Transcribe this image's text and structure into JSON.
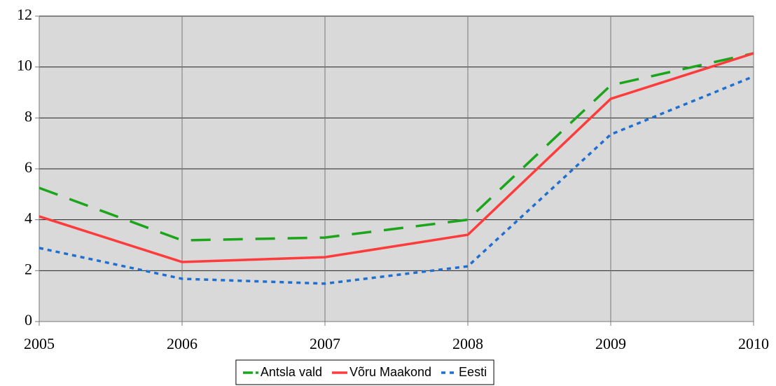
{
  "chart_data": {
    "type": "line",
    "x": [
      2005,
      2006,
      2007,
      2008,
      2009,
      2010
    ],
    "xlim": [
      2005,
      2010
    ],
    "xticks": [
      2005,
      2006,
      2007,
      2008,
      2009,
      2010
    ],
    "ylim": [
      0,
      12
    ],
    "yticks": [
      0,
      2,
      4,
      6,
      8,
      10,
      12
    ],
    "grid": true,
    "legend": "bottom",
    "series": [
      {
        "name": "Antsla vald",
        "color": "#1aa51a",
        "style": "dashed",
        "values": [
          5.25,
          3.19,
          3.3,
          4.0,
          9.28,
          10.54
        ]
      },
      {
        "name": "Võru Maakond",
        "color": "#ff3b3b",
        "style": "solid",
        "values": [
          4.13,
          2.34,
          2.53,
          3.41,
          8.75,
          10.54
        ]
      },
      {
        "name": "Eesti",
        "color": "#1f6fd1",
        "style": "dotted",
        "values": [
          2.89,
          1.68,
          1.49,
          2.17,
          7.35,
          9.63
        ]
      }
    ]
  }
}
